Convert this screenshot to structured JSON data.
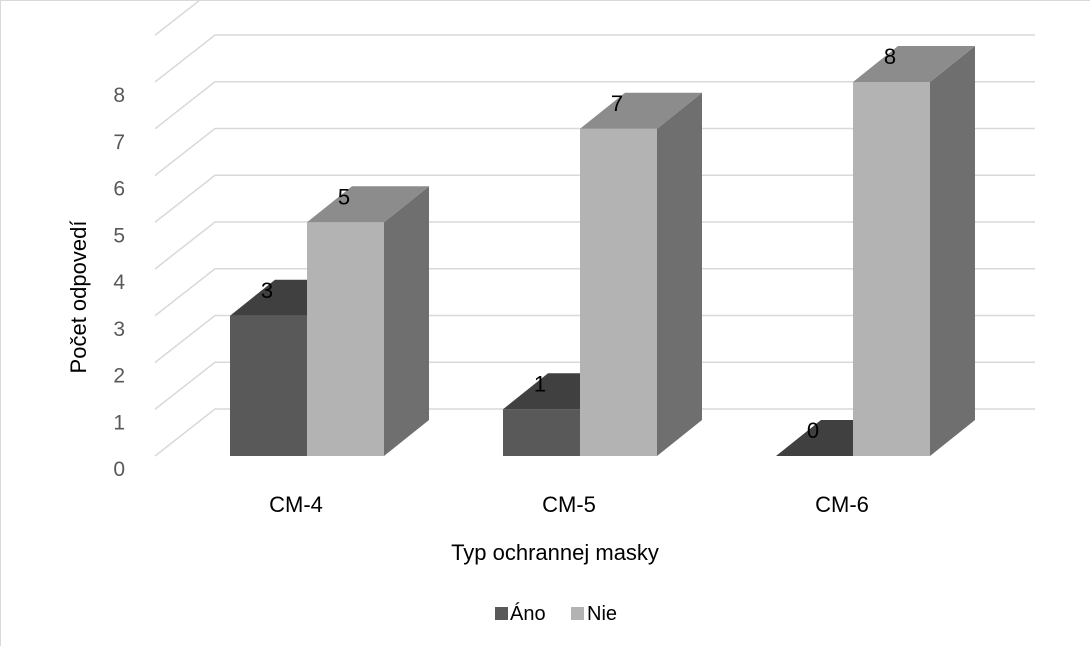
{
  "chart_data": {
    "type": "bar",
    "style": "3d-clustered-column",
    "categories": [
      "CM-4",
      "CM-5",
      "CM-6"
    ],
    "series": [
      {
        "name": "Áno",
        "values": [
          3,
          1,
          0
        ],
        "color": "#595959"
      },
      {
        "name": "Nie",
        "values": [
          5,
          7,
          8
        ],
        "color": "#b3b3b3"
      }
    ],
    "xlabel": "Typ ochrannej masky",
    "ylabel": "Počet odpovedí",
    "ylim": [
      0,
      8
    ],
    "yticks": [
      "0",
      "1",
      "2",
      "3",
      "4",
      "5",
      "6",
      "7",
      "8"
    ],
    "grid": true,
    "legend_position": "bottom",
    "data_labels": true
  }
}
